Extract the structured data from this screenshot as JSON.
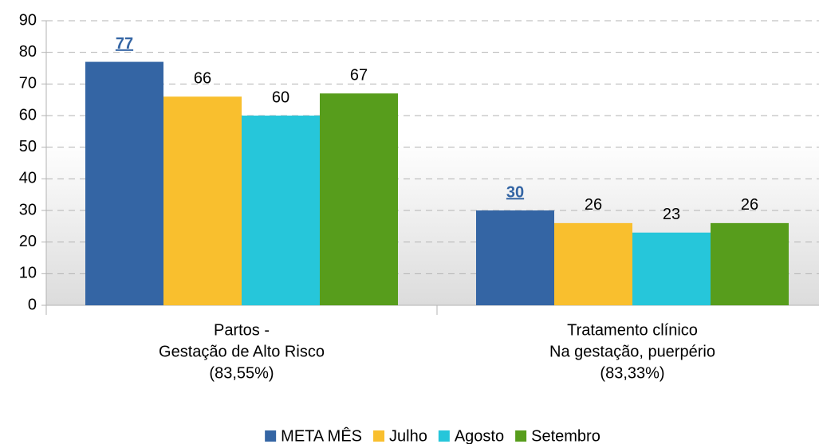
{
  "chart_data": {
    "type": "bar",
    "categories": [
      [
        "Partos -",
        "Gestação de Alto Risco",
        "(83,55%)"
      ],
      [
        "Tratamento clínico",
        "Na gestação, puerpério",
        "(83,33%)"
      ]
    ],
    "series": [
      {
        "name": "META MÊS",
        "color": "#3465a4",
        "values": [
          77,
          30
        ]
      },
      {
        "name": "Julho",
        "color": "#f9bf2e",
        "values": [
          66,
          26
        ]
      },
      {
        "name": "Agosto",
        "color": "#26c6da",
        "values": [
          60,
          23
        ]
      },
      {
        "name": "Setembro",
        "color": "#579d1c",
        "values": [
          67,
          26
        ]
      }
    ],
    "ylim": [
      0,
      90
    ],
    "yticks": [
      0,
      10,
      20,
      30,
      40,
      50,
      60,
      70,
      80,
      90
    ],
    "grid": true,
    "legend": "bottom"
  }
}
